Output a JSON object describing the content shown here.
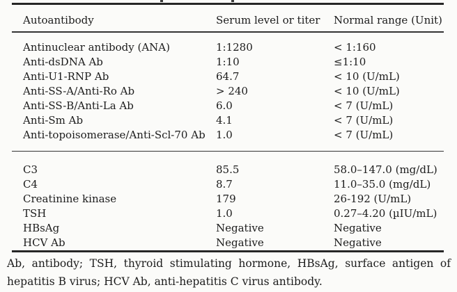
{
  "page": {
    "background": "#fbfbf9",
    "text_color": "#1c1c1c",
    "rule_color": "#2a2a2a"
  },
  "table": {
    "columns": [
      "Autoantibody",
      "Serum level or titer",
      "Normal range (Unit)"
    ],
    "sections": [
      {
        "name": "autoantibodies",
        "rows": [
          [
            "Antinuclear antibody (ANA)",
            "1:1280",
            "< 1:160"
          ],
          [
            "Anti-dsDNA Ab",
            "1:10",
            "≤1:10"
          ],
          [
            "Anti-U1-RNP Ab",
            "64.7",
            "< 10 (U/mL)"
          ],
          [
            "Anti-SS-A/Anti-Ro Ab",
            "> 240",
            "< 10 (U/mL)"
          ],
          [
            "Anti-SS-B/Anti-La Ab",
            "6.0",
            "< 7 (U/mL)"
          ],
          [
            "Anti-Sm Ab",
            "4.1",
            "< 7 (U/mL)"
          ],
          [
            "Anti-topoisomerase/Anti-Scl-70 Ab",
            "1.0",
            "< 7 (U/mL)"
          ]
        ]
      },
      {
        "name": "chemistry-serology",
        "rows": [
          [
            "C3",
            "85.5",
            "58.0–147.0 (mg/dL)"
          ],
          [
            "C4",
            "8.7",
            "11.0–35.0 (mg/dL)"
          ],
          [
            "Creatinine kinase",
            "179",
            "26-192 (U/mL)"
          ],
          [
            "TSH",
            "1.0",
            "0.27–4.20 (µIU/mL)"
          ],
          [
            "HBsAg",
            "Negative",
            "Negative"
          ],
          [
            "HCV Ab",
            "Negative",
            "Negative"
          ]
        ]
      }
    ],
    "footnote": "Ab, antibody; TSH, thyroid stimulating hormone, HBsAg, surface antigen of hepatitis B virus; HCV Ab, anti-hepatitis C virus antibody."
  }
}
